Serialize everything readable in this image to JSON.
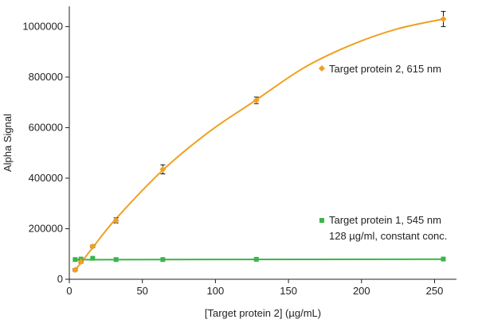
{
  "chart_data": {
    "type": "scatter",
    "xlabel": "[Target protein 2] (µg/mL)",
    "ylabel": "Alpha Signal",
    "xlim": [
      0,
      265
    ],
    "ylim": [
      0,
      1080000
    ],
    "xticks": [
      0,
      50,
      100,
      150,
      200,
      250
    ],
    "yticks": [
      0,
      200000,
      400000,
      600000,
      800000,
      1000000
    ],
    "grid": false,
    "series": [
      {
        "name": "Target protein 2, 615 nm",
        "color": "#f0a020",
        "marker": "diamond",
        "points": [
          {
            "x": 4,
            "y": 37000,
            "err": 5000
          },
          {
            "x": 8,
            "y": 70000,
            "err": 6000
          },
          {
            "x": 16,
            "y": 130000,
            "err": 5000
          },
          {
            "x": 32,
            "y": 233000,
            "err": 10000
          },
          {
            "x": 64,
            "y": 435000,
            "err": 18000
          },
          {
            "x": 128,
            "y": 708000,
            "err": 13000
          },
          {
            "x": 256,
            "y": 1030000,
            "err": 30000
          }
        ],
        "fit": [
          [
            4,
            37000
          ],
          [
            8,
            65000
          ],
          [
            16,
            125000
          ],
          [
            32,
            240000
          ],
          [
            64,
            432000
          ],
          [
            96,
            585000
          ],
          [
            128,
            710000
          ],
          [
            160,
            835000
          ],
          [
            192,
            925000
          ],
          [
            224,
            990000
          ],
          [
            256,
            1030000
          ]
        ]
      },
      {
        "name": "Target protein 1, 545 nm",
        "subtitle": "128 µg/ml, constant conc.",
        "color": "#3ab54a",
        "marker": "square",
        "points": [
          {
            "x": 4,
            "y": 78000
          },
          {
            "x": 8,
            "y": 80000
          },
          {
            "x": 16,
            "y": 83000
          },
          {
            "x": 32,
            "y": 78000
          },
          {
            "x": 64,
            "y": 78000
          },
          {
            "x": 128,
            "y": 79000
          },
          {
            "x": 256,
            "y": 80000
          }
        ],
        "fit": [
          [
            4,
            77500
          ],
          [
            256,
            79500
          ]
        ]
      }
    ]
  }
}
